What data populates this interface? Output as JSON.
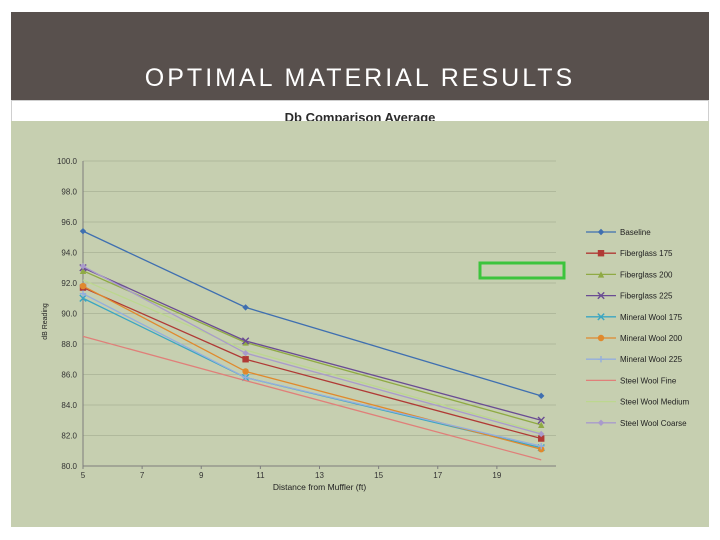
{
  "slide": {
    "title": "OPTIMAL MATERIAL RESULTS",
    "colors": {
      "banner": "#58504d",
      "chart_background": "#c6cfb0",
      "highlight_box": "#3cc43c"
    }
  },
  "chart_data": {
    "type": "line",
    "title": "Db Comparison Average",
    "xlabel": "Distance from Muffler (ft)",
    "ylabel": "dB Reading",
    "x": [
      5,
      10.5,
      20.5
    ],
    "xticks": [
      "5",
      "7",
      "9",
      "11",
      "13",
      "15",
      "17",
      "19"
    ],
    "xtick_values": [
      5,
      7,
      9,
      11,
      13,
      15,
      17,
      19
    ],
    "xlim": [
      5,
      21
    ],
    "yticks": [
      "80.0",
      "82.0",
      "84.0",
      "86.0",
      "88.0",
      "90.0",
      "92.0",
      "94.0",
      "96.0",
      "98.0",
      "100.0"
    ],
    "ylim": [
      80,
      100
    ],
    "grid": "horizontal",
    "legend_position": "right",
    "series": [
      {
        "name": "Baseline",
        "values": [
          95.4,
          90.4,
          84.6
        ],
        "color": "#3f6fb0",
        "marker": "diamond"
      },
      {
        "name": "Fiberglass 175",
        "values": [
          91.7,
          87.0,
          81.8
        ],
        "color": "#b03a35",
        "marker": "square"
      },
      {
        "name": "Fiberglass 200",
        "values": [
          92.8,
          88.1,
          82.7
        ],
        "color": "#8faa44",
        "marker": "triangle"
      },
      {
        "name": "Fiberglass 225",
        "values": [
          93.0,
          88.2,
          83.0
        ],
        "color": "#6a4c93",
        "marker": "x"
      },
      {
        "name": "Mineral Wool 175",
        "values": [
          91.0,
          85.8,
          81.2
        ],
        "color": "#3aa6c2",
        "marker": "x"
      },
      {
        "name": "Mineral Wool 200",
        "values": [
          91.8,
          86.2,
          81.1
        ],
        "color": "#e0892d",
        "marker": "circle"
      },
      {
        "name": "Mineral Wool 225",
        "values": [
          91.3,
          85.8,
          81.3
        ],
        "color": "#93aede",
        "marker": "plus"
      },
      {
        "name": "Steel Wool Fine",
        "values": [
          88.5,
          85.6,
          80.4
        ],
        "color": "#e07f79",
        "marker": "none"
      },
      {
        "name": "Steel Wool Medium",
        "values": [
          92.2,
          87.6,
          82.2
        ],
        "color": "#bcd78f",
        "marker": "none"
      },
      {
        "name": "Steel Wool Coarse",
        "values": [
          93.1,
          87.4,
          82.1
        ],
        "color": "#a99bcb",
        "marker": "diamond"
      }
    ]
  }
}
